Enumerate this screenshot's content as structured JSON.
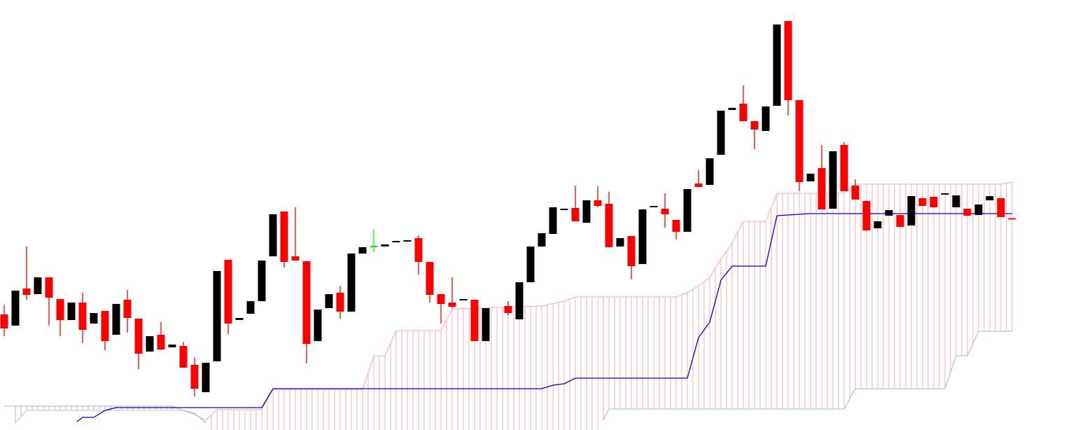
{
  "chart_data": {
    "type": "candlestick",
    "xlim": [
      -0.375,
      95.4375
    ],
    "ylim": [
      0,
      614
    ],
    "up_color": "#000000",
    "down_color": "#ff0000",
    "doji_color": "#00ff00",
    "x": [
      0,
      1,
      2,
      3,
      4,
      5,
      6,
      7,
      8,
      9,
      10,
      11,
      12,
      13,
      14,
      15,
      16,
      17,
      18,
      19,
      20,
      21,
      22,
      23,
      24,
      25,
      26,
      27,
      28,
      29,
      30,
      31,
      32,
      33,
      34,
      35,
      36,
      37,
      38,
      39,
      40,
      41,
      42,
      43,
      45,
      46,
      47,
      48,
      49,
      50,
      51,
      52,
      53,
      54,
      55,
      56,
      57,
      58,
      59,
      60,
      61,
      62,
      63,
      64,
      65,
      66,
      67,
      68,
      69,
      70,
      71,
      72,
      73,
      74,
      75,
      76,
      77,
      78,
      79,
      80,
      81,
      82,
      83,
      84,
      85,
      86,
      87,
      88,
      89,
      90
    ],
    "open": [
      165,
      149,
      202,
      194,
      218,
      187,
      157,
      182,
      152,
      170,
      136,
      186,
      159,
      112,
      136,
      118,
      120,
      93,
      54,
      98,
      243,
      157,
      166,
      184,
      248,
      312,
      248,
      241,
      127,
      174,
      196,
      169,
      252,
      262,
      262,
      268,
      269,
      274,
      240,
      194,
      182,
      185,
      186,
      127,
      177,
      158,
      211,
      262,
      280,
      314,
      317,
      296,
      328,
      323,
      262,
      277,
      237,
      318,
      316,
      300,
      283,
      352,
      350,
      393,
      457,
      466,
      441,
      427,
      463,
      584,
      471,
      355,
      374,
      316,
      407,
      349,
      327,
      288,
      306,
      307,
      292,
      331,
      333,
      336,
      318,
      316,
      307,
      328,
      331,
      302
    ],
    "high": [
      179,
      199,
      262,
      218,
      218,
      187,
      182,
      196,
      167,
      170,
      180,
      200,
      159,
      134,
      154,
      122,
      126,
      104,
      96,
      227,
      243,
      160,
      184,
      242,
      308,
      312,
      318,
      241,
      172,
      194,
      206,
      252,
      261,
      286,
      265,
      270,
      271,
      278,
      240,
      194,
      218,
      187,
      186,
      174,
      184,
      211,
      262,
      281,
      318,
      316,
      349,
      328,
      348,
      340,
      274,
      277,
      315,
      320,
      338,
      300,
      344,
      371,
      388,
      456,
      460,
      492,
      441,
      462,
      579,
      584,
      471,
      366,
      407,
      398,
      411,
      358,
      327,
      298,
      314,
      307,
      334,
      331,
      333,
      338,
      335,
      316,
      322,
      334,
      331,
      302
    ],
    "low": [
      134,
      149,
      186,
      194,
      149,
      134,
      157,
      124,
      152,
      114,
      136,
      139,
      87,
      112,
      114,
      118,
      89,
      48,
      54,
      98,
      137,
      157,
      166,
      184,
      248,
      232,
      242,
      95,
      127,
      174,
      159,
      169,
      252,
      254,
      262,
      268,
      269,
      222,
      182,
      152,
      174,
      185,
      127,
      127,
      164,
      158,
      211,
      262,
      280,
      314,
      298,
      296,
      318,
      261,
      262,
      215,
      237,
      318,
      289,
      272,
      283,
      347,
      350,
      393,
      457,
      441,
      401,
      427,
      463,
      449,
      341,
      355,
      315,
      316,
      341,
      329,
      285,
      288,
      306,
      290,
      292,
      320,
      318,
      336,
      318,
      306,
      307,
      328,
      304,
      301
    ],
    "close": [
      145,
      199,
      193,
      218,
      189,
      157,
      182,
      143,
      167,
      127,
      180,
      160,
      109,
      134,
      115,
      122,
      89,
      59,
      96,
      227,
      152,
      160,
      184,
      242,
      308,
      240,
      242,
      123,
      172,
      194,
      169,
      252,
      261,
      262,
      265,
      270,
      271,
      240,
      193,
      180,
      176,
      187,
      127,
      174,
      167,
      211,
      262,
      281,
      318,
      316,
      298,
      328,
      320,
      261,
      274,
      234,
      315,
      320,
      308,
      283,
      344,
      347,
      388,
      456,
      460,
      441,
      429,
      462,
      579,
      471,
      354,
      366,
      315,
      398,
      341,
      329,
      285,
      298,
      314,
      290,
      334,
      320,
      318,
      338,
      335,
      306,
      322,
      334,
      304,
      301
    ],
    "lines": [
      {
        "color": "#ffb6c1",
        "x": [
          1,
          2,
          16,
          17,
          18,
          19,
          23,
          24,
          32,
          33,
          34,
          35,
          39,
          40,
          48,
          50,
          51,
          60,
          61,
          62,
          63,
          64,
          65,
          66,
          68,
          69,
          75,
          76,
          89,
          90
        ],
        "values": [
          10,
          28,
          28,
          22,
          14,
          29,
          29,
          58,
          58,
          106,
          106,
          142,
          142,
          173,
          177,
          184,
          190,
          190,
          196,
          206,
          218,
          244,
          267,
          298,
          298,
          338,
          338,
          351,
          351,
          354
        ]
      },
      {
        "color": "#b0c4de",
        "x": [
          0,
          15,
          16,
          17,
          18,
          36,
          53.5,
          54,
          75,
          76,
          84,
          85,
          86,
          87,
          90
        ],
        "values": [
          34,
          34,
          28,
          24,
          10,
          null,
          14,
          30,
          30,
          59,
          59,
          106,
          106,
          141,
          141
        ]
      },
      {
        "color": "#0000cd",
        "x": [
          6.5,
          7,
          8,
          9,
          10,
          23,
          24,
          48,
          49,
          50,
          51,
          61,
          62,
          63,
          64,
          65,
          68,
          69,
          72,
          90
        ],
        "values": [
          12,
          18,
          18,
          28,
          32,
          32,
          59,
          59,
          64,
          66,
          74,
          74,
          132,
          154,
          214,
          234,
          234,
          306,
          309,
          309
        ]
      }
    ]
  }
}
